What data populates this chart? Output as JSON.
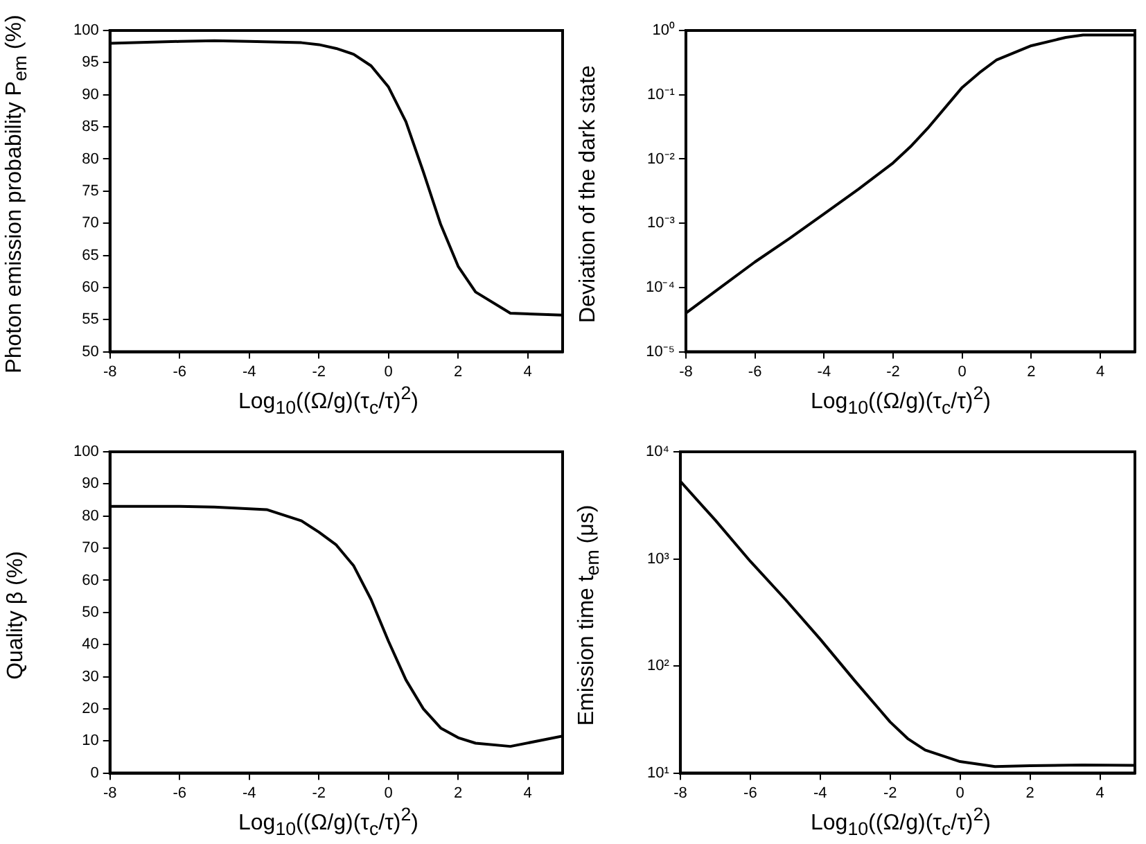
{
  "chart_data": [
    {
      "type": "line",
      "xlabel": "Log$_{10}$((Ω/g)(τ$_{c}$/τ)$^{2}$)",
      "ylabel": "Photon emission probability P$_{em}$ (%)",
      "x": [
        -8,
        -6,
        -5,
        -4,
        -2.5,
        -2,
        -1.5,
        -1,
        -0.5,
        0,
        0.5,
        1,
        1.5,
        2,
        2.5,
        3.5,
        5
      ],
      "series": [
        {
          "color": "#000000",
          "values": [
            98,
            98.3,
            98.4,
            98.3,
            98.1,
            97.8,
            97.2,
            96.3,
            94.5,
            91.2,
            85.8,
            78,
            69.8,
            63.3,
            59.3,
            56,
            55.7
          ]
        }
      ],
      "xlim": [
        -8,
        5
      ],
      "xticks": [
        -8,
        -6,
        -4,
        -2,
        0,
        2,
        4
      ],
      "ylim": [
        50,
        100
      ],
      "yticks": [
        50,
        55,
        60,
        65,
        70,
        75,
        80,
        85,
        90,
        95,
        100
      ],
      "grid": false,
      "legend": false,
      "marker": "none",
      "line_style": "solid"
    },
    {
      "type": "line",
      "xlabel": "Log$_{10}$((Ω/g)(τ$_{c}$/τ)$^{2}$)",
      "ylabel": "Deviation of the dark state",
      "x": [
        -8,
        -7,
        -6,
        -5,
        -4,
        -3,
        -2,
        -1.5,
        -1,
        0,
        0.5,
        1,
        2,
        3,
        3.5,
        5
      ],
      "series": [
        {
          "color": "#000000",
          "values": [
            4e-05,
            0.0001,
            0.00025,
            0.00058,
            0.0014,
            0.0034,
            0.0087,
            0.0155,
            0.03,
            0.13,
            0.22,
            0.35,
            0.58,
            0.78,
            0.85,
            0.85
          ]
        }
      ],
      "xlim": [
        -8,
        5
      ],
      "xticks": [
        -8,
        -6,
        -4,
        -2,
        0,
        2,
        4
      ],
      "ylim": [
        1e-05,
        1
      ],
      "log": "y",
      "yticks": [
        {
          "value": 1e-05,
          "label": "10⁻⁵"
        },
        {
          "value": 0.0001,
          "label": "10⁻⁴"
        },
        {
          "value": 0.001,
          "label": "10⁻³"
        },
        {
          "value": 0.01,
          "label": "10⁻²"
        },
        {
          "value": 0.1,
          "label": "10⁻¹"
        },
        {
          "value": 1,
          "label": "10⁰"
        }
      ],
      "grid": false,
      "legend": false,
      "marker": "none",
      "line_style": "solid"
    },
    {
      "type": "line",
      "xlabel": "Log$_{10}$((Ω/g)(τ$_{c}$/τ)$^{2}$)",
      "ylabel": "Quality β (%)",
      "x": [
        -8,
        -6,
        -5,
        -3.5,
        -2.5,
        -2,
        -1.5,
        -1,
        -0.5,
        0,
        0.5,
        1,
        1.5,
        2,
        2.5,
        3.5,
        5
      ],
      "series": [
        {
          "color": "#000000",
          "values": [
            83,
            83,
            82.8,
            82,
            78.5,
            75,
            71,
            64.5,
            54,
            41,
            29,
            20,
            14,
            11,
            9.3,
            8.3,
            11.5
          ]
        }
      ],
      "xlim": [
        -8,
        5
      ],
      "xticks": [
        -8,
        -6,
        -4,
        -2,
        0,
        2,
        4
      ],
      "ylim": [
        0,
        100
      ],
      "yticks": [
        0,
        10,
        20,
        30,
        40,
        50,
        60,
        70,
        80,
        90,
        100
      ],
      "grid": false,
      "legend": false,
      "marker": "none",
      "line_style": "solid"
    },
    {
      "type": "line",
      "xlabel": "Log$_{10}$((Ω/g)(τ$_{c}$/τ)$^{2}$)",
      "ylabel": "Emission time t$_{em}$ (μs)",
      "x": [
        -8,
        -7,
        -6,
        -5,
        -4,
        -3,
        -2,
        -1.5,
        -1,
        0,
        1,
        2,
        3.5,
        5
      ],
      "series": [
        {
          "color": "#000000",
          "values": [
            5300,
            2300,
            950,
            420,
            178,
            72,
            30,
            21,
            16.4,
            12.8,
            11.5,
            11.7,
            11.9,
            11.8
          ]
        }
      ],
      "xlim": [
        -8,
        5
      ],
      "xticks": [
        -8,
        -6,
        -4,
        -2,
        0,
        2,
        4
      ],
      "ylim": [
        10,
        10000
      ],
      "log": "y",
      "yticks": [
        {
          "value": 10,
          "label": "10¹"
        },
        {
          "value": 100,
          "label": "10²"
        },
        {
          "value": 1000,
          "label": "10³"
        },
        {
          "value": 10000,
          "label": "10⁴"
        }
      ],
      "grid": false,
      "legend": false,
      "marker": "none",
      "line_style": "solid"
    }
  ]
}
